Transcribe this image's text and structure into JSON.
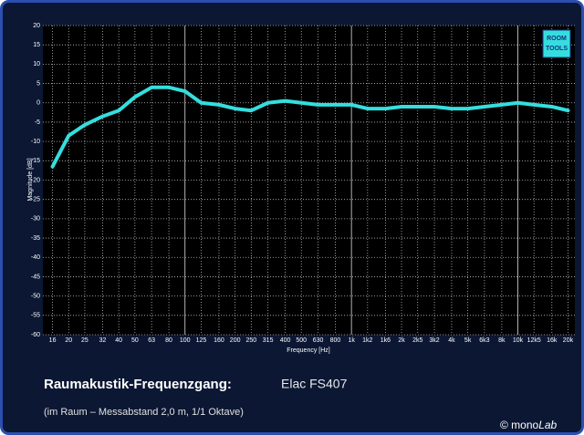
{
  "chart_data": {
    "type": "line",
    "title": "Raumakustik-Frequenzgang:",
    "title_model": "Elac FS407",
    "subtitle": "(im Raum – Messabstand 2,0 m, 1/1 Oktave)",
    "x_label": "Frequency [Hz]",
    "y_label": "Magnitude [dB]",
    "x_scale": "log",
    "grid": true,
    "x": [
      16,
      20,
      25,
      32,
      40,
      50,
      63,
      80,
      100,
      125,
      160,
      200,
      250,
      315,
      400,
      500,
      630,
      800,
      1000,
      1250,
      1600,
      2000,
      2500,
      3150,
      4000,
      5000,
      6300,
      8000,
      10000,
      12500,
      16000,
      20000
    ],
    "series": [
      {
        "name": "Elac FS407",
        "color": "#35dede",
        "values": [
          -16.5,
          -8.5,
          -5.7,
          -3.5,
          -2,
          1.5,
          4,
          4,
          3,
          0,
          -0.5,
          -1.5,
          -2,
          0,
          0.5,
          0,
          -0.5,
          -0.5,
          -0.5,
          -1.5,
          -1.5,
          -1,
          -1,
          -1,
          -1.5,
          -1.5,
          -1,
          -0.5,
          0,
          -0.5,
          -1,
          -2
        ]
      }
    ],
    "xlim": [
      14,
      22000
    ],
    "ylim": [
      -60,
      20
    ],
    "xticks": [
      16,
      20,
      25,
      32,
      40,
      50,
      63,
      80,
      100,
      125,
      160,
      200,
      250,
      315,
      400,
      500,
      630,
      800,
      {
        "value": 1000,
        "label": "1k"
      },
      {
        "value": 1250,
        "label": "1k2"
      },
      {
        "value": 1600,
        "label": "1k6"
      },
      {
        "value": 2000,
        "label": "2k"
      },
      {
        "value": 2500,
        "label": "2k5"
      },
      {
        "value": 3150,
        "label": "3k2"
      },
      {
        "value": 4000,
        "label": "4k"
      },
      {
        "value": 5000,
        "label": "5k"
      },
      {
        "value": 6300,
        "label": "6k3"
      },
      {
        "value": 8000,
        "label": "8k"
      },
      {
        "value": 10000,
        "label": "10k"
      },
      {
        "value": 12500,
        "label": "12k5"
      },
      {
        "value": 16000,
        "label": "16k"
      },
      {
        "value": 20000,
        "label": "20k"
      }
    ],
    "yticks": [
      20,
      15,
      10,
      5,
      0,
      -5,
      -10,
      -15,
      -20,
      -25,
      -30,
      -35,
      -40,
      -45,
      -50,
      -55,
      -60
    ]
  },
  "logo": {
    "line1": "ROOM",
    "line2": "TOOLS"
  },
  "credit": {
    "prefix": "© mono",
    "italic": "Lab"
  }
}
